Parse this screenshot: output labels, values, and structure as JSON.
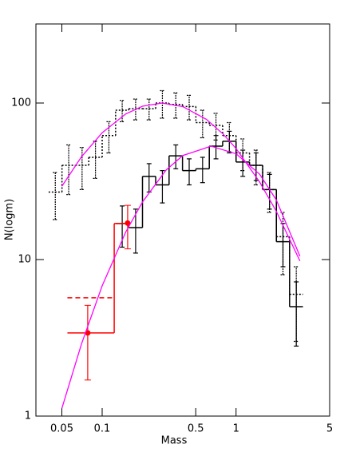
{
  "chart_data": {
    "type": "histogram",
    "xlabel": "Mass",
    "ylabel": "N(logm)",
    "xscale": "log",
    "yscale": "log",
    "xlim": [
      0.032,
      5
    ],
    "ylim": [
      1,
      320
    ],
    "xticks": [
      0.05,
      0.1,
      0.5,
      1,
      5
    ],
    "yticks": [
      1,
      10,
      100
    ],
    "series": [
      {
        "type": "step",
        "color": "#000000",
        "linestyle": "dotted",
        "bins": [
          0.0398,
          0.0501,
          0.0631,
          0.0794,
          0.1,
          0.126,
          0.158,
          0.2,
          0.251,
          0.316,
          0.398,
          0.501,
          0.631,
          0.794,
          1,
          1.26,
          1.58,
          2,
          2.51,
          3.16
        ],
        "values": [
          27,
          40,
          40,
          45,
          62,
          90,
          92,
          92,
          100,
          98,
          95,
          75,
          72,
          62,
          48,
          40,
          28,
          14,
          6
        ],
        "errors": [
          9,
          14,
          12,
          12,
          14,
          14,
          14,
          14,
          20,
          18,
          17,
          15,
          14,
          13,
          11,
          10,
          8,
          6,
          3
        ]
      },
      {
        "type": "step",
        "color": "#000000",
        "linestyle": "solid",
        "bins": [
          0.126,
          0.158,
          0.2,
          0.251,
          0.316,
          0.398,
          0.501,
          0.631,
          0.794,
          1,
          1.26,
          1.58,
          2,
          2.51,
          3.16
        ],
        "values": [
          17,
          16,
          34,
          30,
          46,
          37,
          38,
          53,
          57,
          42,
          40,
          28,
          13,
          5
        ],
        "errors": [
          5,
          5,
          7,
          7,
          8,
          7,
          7,
          9,
          9,
          8,
          8,
          7,
          4,
          2.2
        ]
      },
      {
        "type": "step",
        "color": "#ff0000",
        "linestyle": "solid",
        "bins": [
          0.055,
          0.123,
          0.155
        ],
        "values": [
          3.4,
          17
        ]
      },
      {
        "type": "step",
        "color": "#ff0000",
        "linestyle": "dashed",
        "bins": [
          0.055,
          0.123
        ],
        "values": [
          5.7
        ]
      },
      {
        "type": "points",
        "color": "#ff0000",
        "x": [
          0.078,
          0.155
        ],
        "values": [
          3.4,
          17.1
        ],
        "err_minus": [
          1.7,
          5.4
        ],
        "err_plus": [
          1.7,
          5.1
        ]
      },
      {
        "type": "line",
        "color": "#ff00ff",
        "x": [
          0.05,
          0.07,
          0.1,
          0.15,
          0.2,
          0.28,
          0.4,
          0.6,
          0.8,
          1,
          1.5,
          2,
          3
        ],
        "values": [
          29.4,
          45.3,
          64.6,
          85.2,
          95.4,
          100,
          94.9,
          78.7,
          63.4,
          51.2,
          31.3,
          20.3,
          9.8
        ]
      },
      {
        "type": "line",
        "color": "#ff00ff",
        "x": [
          0.05,
          0.07,
          0.1,
          0.15,
          0.2,
          0.3,
          0.4,
          0.65,
          1,
          1.5,
          2,
          3
        ],
        "values": [
          1.12,
          2.88,
          6.8,
          15,
          23.3,
          37.3,
          46.2,
          53,
          47.4,
          35.1,
          24,
          10.5
        ]
      }
    ]
  }
}
